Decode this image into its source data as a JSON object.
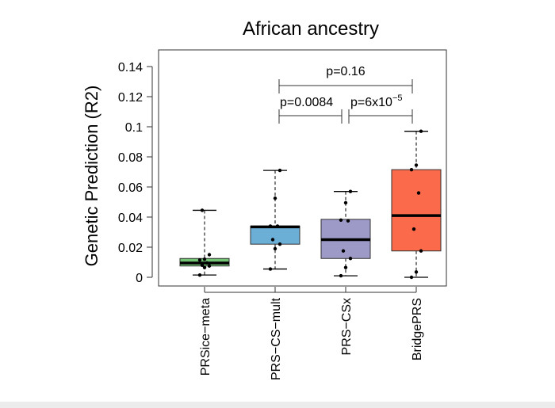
{
  "chart_data": {
    "type": "box",
    "title": "African ancestry",
    "xlabel": "",
    "ylabel": "Genetic Prediction (R2)",
    "ylim": [
      0,
      0.15
    ],
    "yticks": [
      "0",
      "0.02",
      "0.04",
      "0.06",
      "0.08",
      "0.1",
      "0.12",
      "0.14"
    ],
    "grid": false,
    "categories": [
      "PRSice−meta",
      "PRS−CS−mult",
      "PRS−CSx",
      "BridgePRS"
    ],
    "series": [
      {
        "color": "#74c476",
        "min": 0.0015,
        "q1": 0.0075,
        "median": 0.0095,
        "q3": 0.0125,
        "max": 0.0445,
        "points": [
          0.0015,
          0.0065,
          0.0075,
          0.008,
          0.0095,
          0.0115,
          0.012,
          0.015,
          0.0445
        ]
      },
      {
        "color": "#6baed6",
        "min": 0.0055,
        "q1": 0.022,
        "median": 0.0335,
        "q3": 0.034,
        "max": 0.071,
        "points": [
          0.0055,
          0.019,
          0.022,
          0.025,
          0.034,
          0.034,
          0.0525,
          0.071
        ]
      },
      {
        "color": "#9e9ac8",
        "min": 0.001,
        "q1": 0.0125,
        "median": 0.025,
        "q3": 0.0385,
        "max": 0.057,
        "points": [
          0.001,
          0.0065,
          0.0125,
          0.0175,
          0.0375,
          0.038,
          0.0495,
          0.057
        ]
      },
      {
        "color": "#fb6a4a",
        "min": 0.0,
        "q1": 0.0175,
        "median": 0.041,
        "q3": 0.0715,
        "max": 0.097,
        "points": [
          0.0,
          0.0035,
          0.0175,
          0.032,
          0.056,
          0.0715,
          0.0745,
          0.097
        ]
      }
    ],
    "annotations": [
      {
        "from": 1,
        "to": 3,
        "label": "p=0.16"
      },
      {
        "from": 1,
        "to": 2,
        "label": "p=0.0084"
      },
      {
        "from": 2,
        "to": 3,
        "label_base": "p=6x10",
        "label_exp": "−5"
      }
    ]
  }
}
